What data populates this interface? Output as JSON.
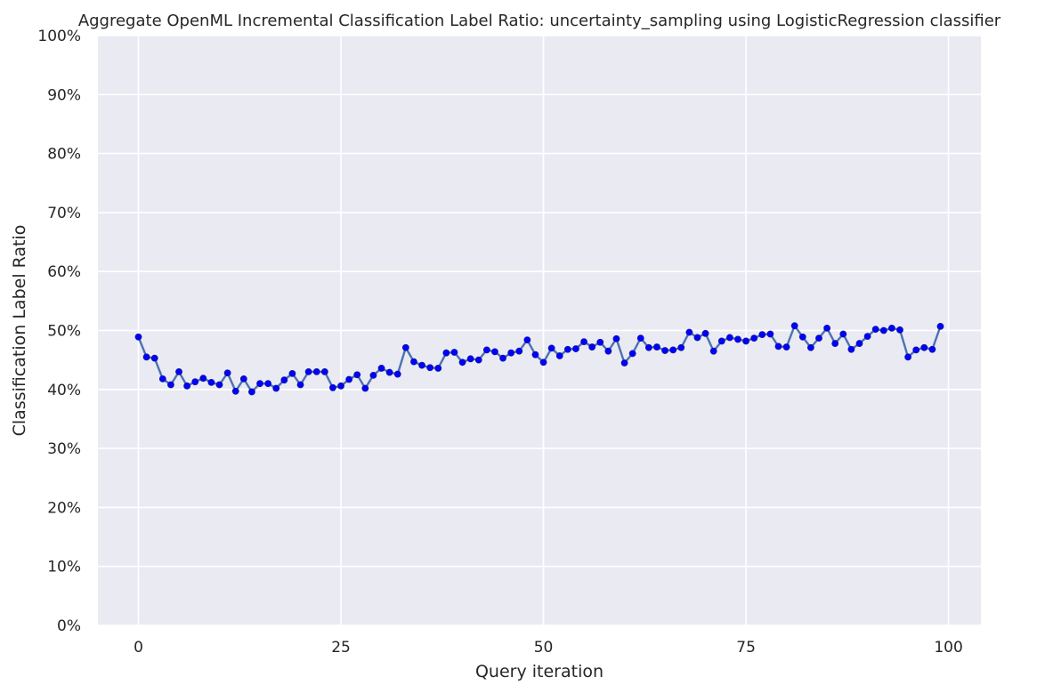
{
  "chart_data": {
    "type": "line",
    "title": "Aggregate OpenML Incremental Classification Label Ratio: uncertainty_sampling using LogisticRegression classifier",
    "xlabel": "Query iteration",
    "ylabel": "Classification Label Ratio",
    "xlim": [
      -5,
      104
    ],
    "ylim": [
      0,
      1
    ],
    "x_ticks": [
      0,
      25,
      50,
      75,
      100
    ],
    "x_tick_labels": [
      "0",
      "25",
      "50",
      "75",
      "100"
    ],
    "y_ticks": [
      0,
      0.1,
      0.2,
      0.3,
      0.4,
      0.5,
      0.6,
      0.7,
      0.8,
      0.9,
      1.0
    ],
    "y_tick_labels": [
      "0%",
      "10%",
      "20%",
      "30%",
      "40%",
      "50%",
      "60%",
      "70%",
      "80%",
      "90%",
      "100%"
    ],
    "grid": true,
    "colors": {
      "background": "#eaeaf2",
      "grid": "#ffffff",
      "line": "#4c72b0",
      "marker": "#0000ff"
    },
    "x": [
      0,
      1,
      2,
      3,
      4,
      5,
      6,
      7,
      8,
      9,
      10,
      11,
      12,
      13,
      14,
      15,
      16,
      17,
      18,
      19,
      20,
      21,
      22,
      23,
      24,
      25,
      26,
      27,
      28,
      29,
      30,
      31,
      32,
      33,
      34,
      35,
      36,
      37,
      38,
      39,
      40,
      41,
      42,
      43,
      44,
      45,
      46,
      47,
      48,
      49,
      50,
      51,
      52,
      53,
      54,
      55,
      56,
      57,
      58,
      59,
      60,
      61,
      62,
      63,
      64,
      65,
      66,
      67,
      68,
      69,
      70,
      71,
      72,
      73,
      74,
      75,
      76,
      77,
      78,
      79,
      80,
      81,
      82,
      83,
      84,
      85,
      86,
      87,
      88,
      89,
      90,
      91,
      92,
      93,
      94,
      95,
      96,
      97,
      98,
      99
    ],
    "values": [
      0.489,
      0.455,
      0.453,
      0.418,
      0.408,
      0.43,
      0.406,
      0.413,
      0.419,
      0.412,
      0.408,
      0.428,
      0.397,
      0.418,
      0.396,
      0.41,
      0.41,
      0.402,
      0.416,
      0.427,
      0.408,
      0.43,
      0.43,
      0.43,
      0.403,
      0.406,
      0.417,
      0.425,
      0.402,
      0.424,
      0.436,
      0.429,
      0.426,
      0.471,
      0.447,
      0.441,
      0.437,
      0.436,
      0.462,
      0.463,
      0.446,
      0.452,
      0.45,
      0.467,
      0.464,
      0.453,
      0.462,
      0.465,
      0.484,
      0.459,
      0.446,
      0.47,
      0.457,
      0.468,
      0.469,
      0.481,
      0.472,
      0.48,
      0.465,
      0.486,
      0.445,
      0.461,
      0.487,
      0.471,
      0.472,
      0.466,
      0.467,
      0.471,
      0.497,
      0.488,
      0.495,
      0.465,
      0.482,
      0.488,
      0.485,
      0.482,
      0.487,
      0.493,
      0.494,
      0.473,
      0.472,
      0.508,
      0.489,
      0.471,
      0.487,
      0.504,
      0.478,
      0.494,
      0.468,
      0.478,
      0.49,
      0.502,
      0.5,
      0.504,
      0.501,
      0.455,
      0.467,
      0.471,
      0.468,
      0.507
    ]
  }
}
